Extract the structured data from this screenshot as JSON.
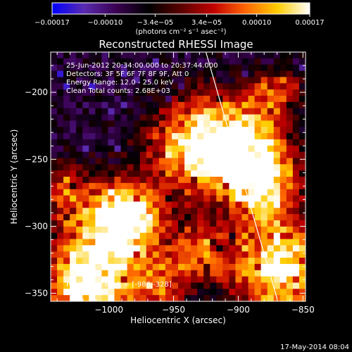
{
  "chart_data": {
    "type": "heatmap",
    "title": "Reconstructed RHESSI Image",
    "xlabel": "Heliocentric X (arcsec)",
    "ylabel": "Heliocentric Y (arcsec)",
    "xlim": [
      -1045,
      -848
    ],
    "ylim": [
      -356,
      -170
    ],
    "xticks": [
      -1000,
      -950,
      -900,
      -850
    ],
    "yticks": [
      -350,
      -300,
      -250,
      -200
    ],
    "xtick_labels": [
      "−1000",
      "−950",
      "−900",
      "−850"
    ],
    "ytick_labels": [
      "−350",
      "−300",
      "−250",
      "−200"
    ],
    "colorbar": {
      "min": -0.00017,
      "max": 0.00017,
      "ticks": [
        -0.00017,
        -0.0001,
        -3.4e-05,
        3.4e-05,
        0.0001,
        0.00017
      ],
      "tick_labels": [
        "−0.00017",
        "−0.00010",
        "−3.4e−05",
        "3.4e−05",
        "0.00010",
        "0.00017"
      ],
      "unit_label": "(photons cm⁻² s⁻¹ asec⁻²)",
      "colormap": [
        "#0000ff",
        "#5a2bb0",
        "#3a0050",
        "#000000",
        "#5a0000",
        "#c00000",
        "#ff6600",
        "#ffcc00",
        "#ffffff"
      ]
    },
    "grid_cells": 40,
    "hotspots": [
      {
        "x": -870,
        "y": -330,
        "intensity": 1.0,
        "radius": 25
      },
      {
        "x": -1000,
        "y": -310,
        "intensity": 0.9,
        "radius": 28
      },
      {
        "x": -930,
        "y": -240,
        "intensity": 0.95,
        "radius": 25
      },
      {
        "x": -895,
        "y": -240,
        "intensity": 0.8,
        "radius": 22
      },
      {
        "x": -1020,
        "y": -350,
        "intensity": 0.85,
        "radius": 20
      },
      {
        "x": -985,
        "y": -290,
        "intensity": 0.7,
        "radius": 15
      },
      {
        "x": -880,
        "y": -270,
        "intensity": 0.75,
        "radius": 18
      },
      {
        "x": -870,
        "y": -200,
        "intensity": 0.6,
        "radius": 12
      },
      {
        "x": -930,
        "y": -320,
        "intensity": 0.6,
        "radius": 14
      },
      {
        "x": -1035,
        "y": -270,
        "intensity": 0.45,
        "radius": 12
      },
      {
        "x": -960,
        "y": -345,
        "intensity": 0.5,
        "radius": 14
      }
    ],
    "limb_line": {
      "x1": -925,
      "y1": -170,
      "x2": -870,
      "y2": -354
    },
    "annotations": [
      "25-Jun-2012 20:34:00.000 to 20:37:44.000",
      "Detectors: 3F 5F 6F 7F 8F 9F, Att 0",
      "Energy Range: 12.0 - 25.0 keV",
      "Clean    Total counts: 2.68E+03"
    ],
    "peak_label": "Position of Peak = [-986,-328]"
  },
  "footer_timestamp": "17-May-2014 08:04"
}
